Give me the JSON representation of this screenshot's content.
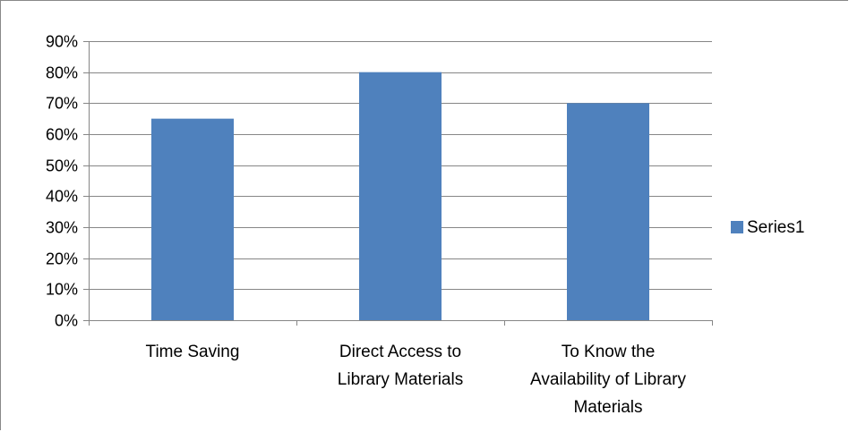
{
  "chart_data": {
    "type": "bar",
    "categories": [
      [
        "Time Saving"
      ],
      [
        "Direct Access to",
        "Library Materials"
      ],
      [
        "To Know the",
        "Availability of Library",
        "Materials"
      ]
    ],
    "series": [
      {
        "name": "Series1",
        "values": [
          0.65,
          0.8,
          0.7
        ],
        "color": "#4F81BD"
      }
    ],
    "ylim": [
      0,
      0.9
    ],
    "yticks": [
      "0%",
      "10%",
      "20%",
      "30%",
      "40%",
      "50%",
      "60%",
      "70%",
      "80%",
      "90%"
    ],
    "grid": true,
    "legend": "right"
  }
}
